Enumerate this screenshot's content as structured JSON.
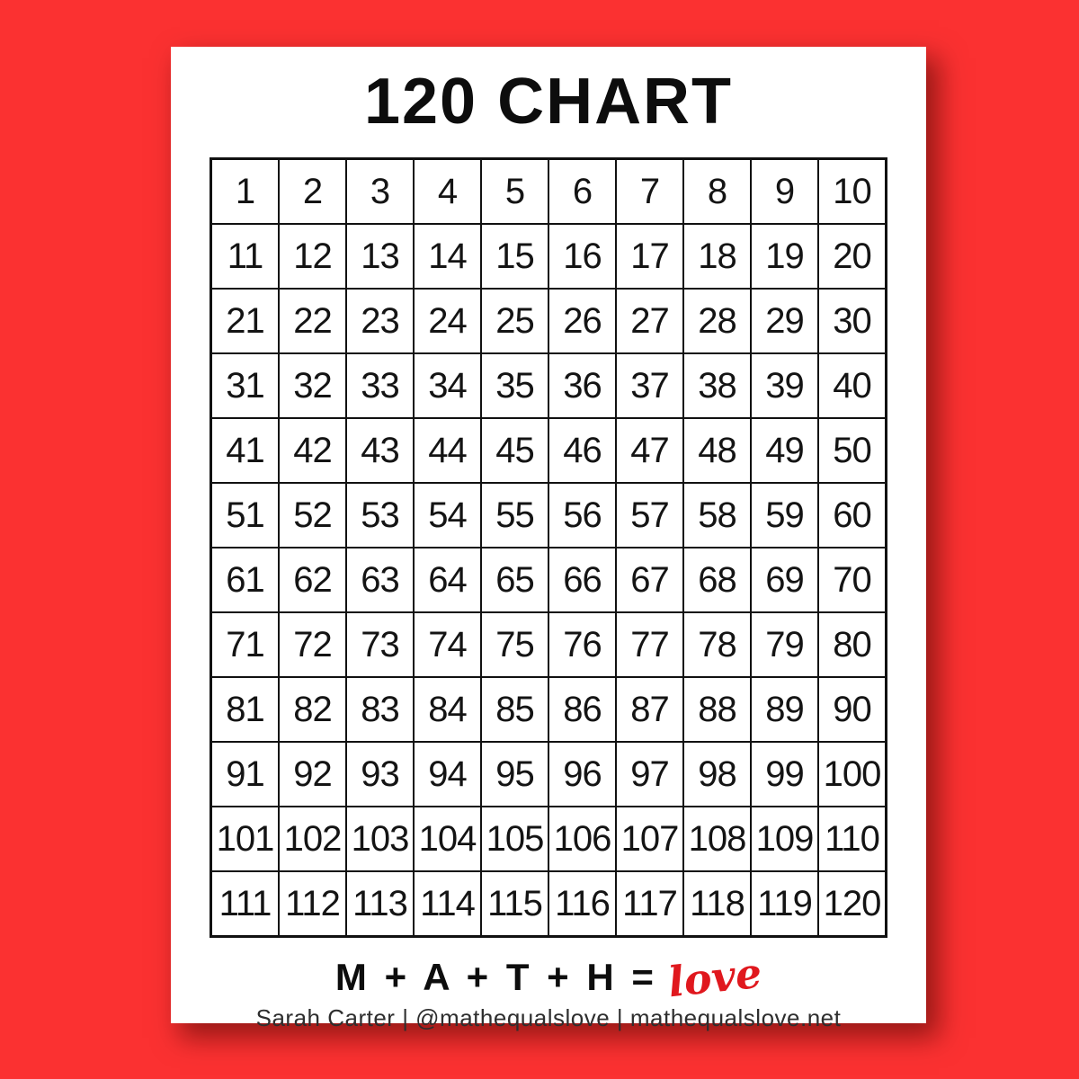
{
  "page": {
    "title": "120 CHART",
    "background_color": "#fb3131",
    "paper_color": "#ffffff"
  },
  "grid": {
    "rows": [
      [
        1,
        2,
        3,
        4,
        5,
        6,
        7,
        8,
        9,
        10
      ],
      [
        11,
        12,
        13,
        14,
        15,
        16,
        17,
        18,
        19,
        20
      ],
      [
        21,
        22,
        23,
        24,
        25,
        26,
        27,
        28,
        29,
        30
      ],
      [
        31,
        32,
        33,
        34,
        35,
        36,
        37,
        38,
        39,
        40
      ],
      [
        41,
        42,
        43,
        44,
        45,
        46,
        47,
        48,
        49,
        50
      ],
      [
        51,
        52,
        53,
        54,
        55,
        56,
        57,
        58,
        59,
        60
      ],
      [
        61,
        62,
        63,
        64,
        65,
        66,
        67,
        68,
        69,
        70
      ],
      [
        71,
        72,
        73,
        74,
        75,
        76,
        77,
        78,
        79,
        80
      ],
      [
        81,
        82,
        83,
        84,
        85,
        86,
        87,
        88,
        89,
        90
      ],
      [
        91,
        92,
        93,
        94,
        95,
        96,
        97,
        98,
        99,
        100
      ],
      [
        101,
        102,
        103,
        104,
        105,
        106,
        107,
        108,
        109,
        110
      ],
      [
        111,
        112,
        113,
        114,
        115,
        116,
        117,
        118,
        119,
        120
      ]
    ]
  },
  "footer": {
    "equation": "M + A + T + H =",
    "love": "love",
    "love_color": "#e0181e",
    "credit": "Sarah Carter  |  @mathequalslove  |  mathequalslove.net"
  }
}
